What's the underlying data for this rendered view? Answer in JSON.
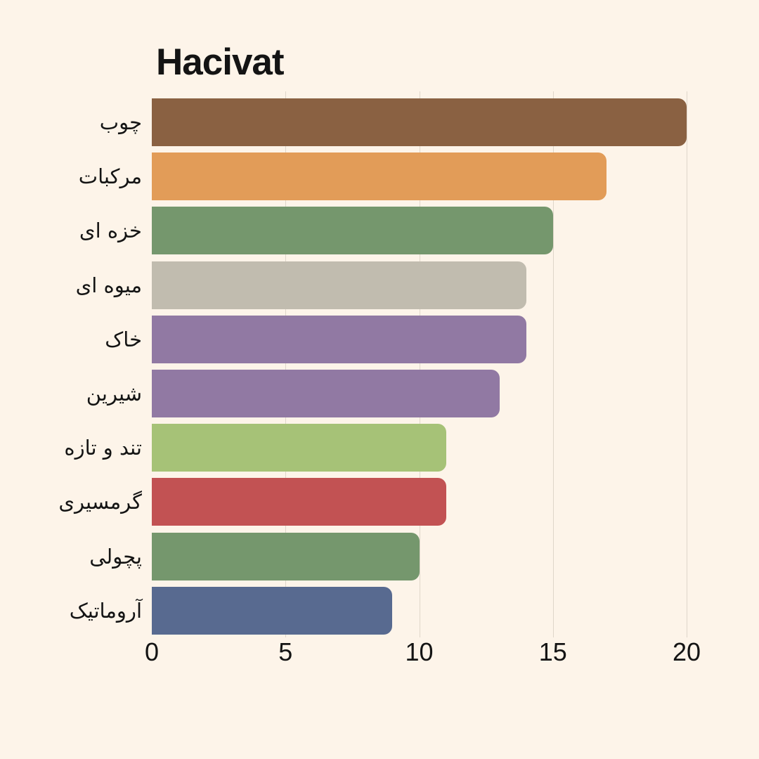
{
  "title": "Hacivat",
  "colors": {
    "background": "#FDF4E9",
    "text": "#141414",
    "gridline": "#DFD6CA"
  },
  "chart_data": {
    "type": "bar",
    "orientation": "horizontal",
    "title": "Hacivat",
    "categories": [
      "چوب",
      "مرکبات",
      "خزه ای",
      "میوه ای",
      "خاک",
      "شیرین",
      "تند و تازه",
      "گرمسیری",
      "پچولی",
      "آروماتیک"
    ],
    "values": [
      20,
      17,
      15,
      14,
      14,
      13,
      11,
      11,
      10,
      9
    ],
    "bar_colors": [
      "#8A6142",
      "#E29C58",
      "#75976D",
      "#C1BCAF",
      "#9179A3",
      "#9179A3",
      "#A6C277",
      "#C25253",
      "#75976D",
      "#586A90"
    ],
    "xticks": [
      0,
      5,
      10,
      15,
      20
    ],
    "xlim": [
      0,
      20
    ],
    "xlabel": "",
    "ylabel": "",
    "grid": true,
    "legend": false
  }
}
